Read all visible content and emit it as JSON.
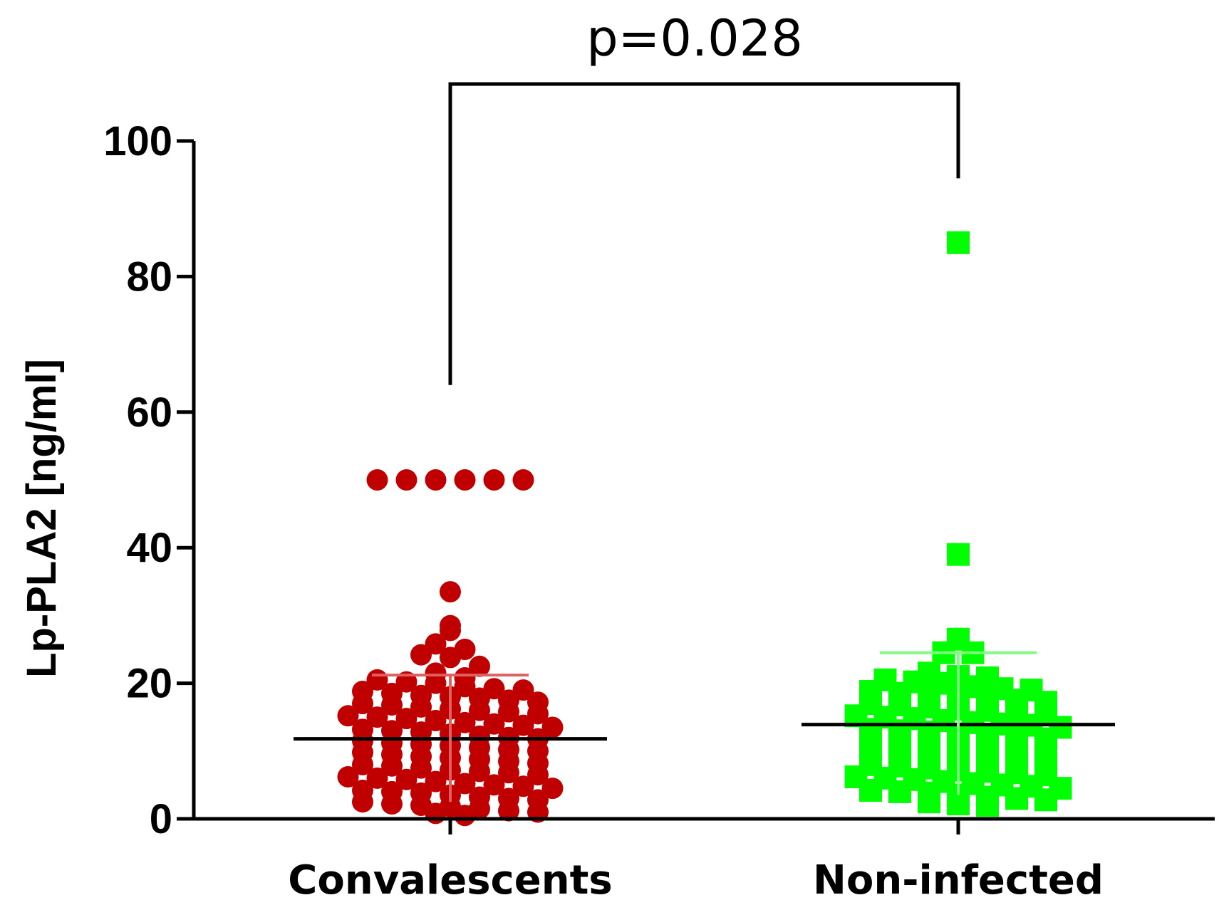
{
  "chart_data": {
    "type": "scatter",
    "subtype": "dot-plot",
    "ylabel": "Lp-PLA2 [ng/ml]",
    "ylim": [
      0,
      100
    ],
    "yticks": [
      0,
      20,
      40,
      60,
      80,
      100
    ],
    "categories": [
      "Convalescents",
      "Non-infected"
    ],
    "annotation": "p=0.028",
    "series": [
      {
        "name": "Convalescents",
        "color": "#c00000",
        "marker": "circle",
        "mean": 11.8,
        "sd_upper": 21.2,
        "sd_lower": 2.5,
        "values": [
          50,
          50,
          50,
          50,
          50,
          50,
          33.5,
          28.5,
          25.8,
          24.2,
          23.8,
          25,
          27.8,
          22.5,
          21.5,
          20.8,
          20.5,
          20.2,
          20,
          19.5,
          19.2,
          19,
          18.8,
          18.5,
          18.2,
          18,
          17.8,
          17.5,
          17.2,
          17,
          16.8,
          16.5,
          16.2,
          16,
          15.8,
          15.5,
          15.2,
          15,
          14.8,
          14.5,
          14.2,
          14,
          13.8,
          13.5,
          13.2,
          13,
          12.8,
          12.5,
          12.2,
          12,
          11.8,
          11.5,
          11.2,
          11,
          10.8,
          10.5,
          10.2,
          10,
          9.8,
          9.5,
          9.2,
          9,
          8.8,
          8.5,
          8.2,
          8,
          7.8,
          7.5,
          7.2,
          7,
          6.8,
          6.5,
          6.2,
          6,
          5.8,
          5.5,
          5.2,
          5,
          4.8,
          4.5,
          4.2,
          4,
          3.8,
          3.5,
          3.2,
          3,
          2.8,
          2.5,
          2.2,
          2,
          1.8,
          1.5,
          1.2,
          1,
          0.8,
          0.5
        ]
      },
      {
        "name": "Non-infected",
        "color": "#00ff00",
        "marker": "square",
        "mean": 13.9,
        "sd_upper": 24.5,
        "sd_lower": 3.5,
        "values": [
          85,
          39,
          26.5,
          24.5,
          24.5,
          21.5,
          21,
          20.8,
          20.5,
          20.2,
          20,
          19.5,
          19.2,
          19,
          18.8,
          18.5,
          18.2,
          18,
          17.8,
          17.5,
          17.2,
          17,
          16.8,
          16.5,
          16.2,
          16,
          15.8,
          15.5,
          15.2,
          15,
          14.8,
          14.5,
          14.2,
          14,
          13.8,
          13.5,
          13.2,
          13,
          12.8,
          12.5,
          12.2,
          12,
          11.8,
          11.5,
          11.2,
          11,
          10.8,
          10.5,
          10.2,
          10,
          9.8,
          9.5,
          9.2,
          9,
          8.8,
          8.5,
          8.2,
          8,
          7.8,
          7.5,
          7.2,
          7,
          6.8,
          6.5,
          6.2,
          6,
          5.8,
          5.5,
          5.2,
          5,
          4.8,
          4.5,
          4.2,
          4,
          3.8,
          3.5,
          3.2,
          3,
          2.8,
          2.5,
          2.2,
          2
        ]
      }
    ]
  }
}
